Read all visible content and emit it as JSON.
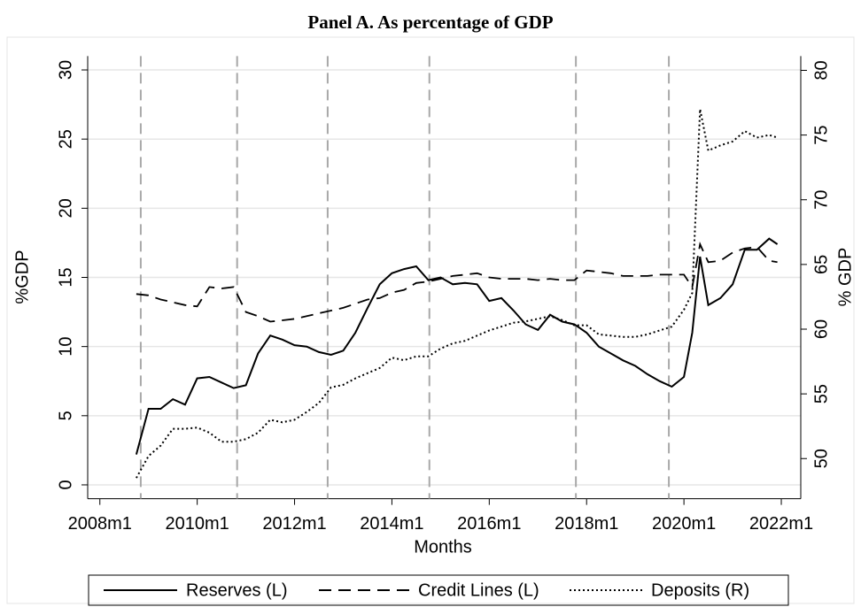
{
  "chart_data": {
    "type": "line",
    "title": "Panel A. As percentage of GDP",
    "x_label": "Months",
    "y_label": "%GDP",
    "y2_label": "% GDP",
    "x": [
      2008.75,
      2009,
      2009.25,
      2009.5,
      2009.75,
      2010,
      2010.25,
      2010.5,
      2010.75,
      2011,
      2011.25,
      2011.5,
      2011.75,
      2012,
      2012.25,
      2012.5,
      2012.75,
      2013,
      2013.25,
      2013.5,
      2013.75,
      2014,
      2014.25,
      2014.5,
      2014.75,
      2015,
      2015.25,
      2015.5,
      2015.75,
      2016,
      2016.25,
      2016.5,
      2016.75,
      2017,
      2017.25,
      2017.5,
      2017.75,
      2018,
      2018.25,
      2018.5,
      2018.75,
      2019,
      2019.25,
      2019.5,
      2019.75,
      2020,
      2020.17,
      2020.33,
      2020.5,
      2020.75,
      2021,
      2021.25,
      2021.5,
      2021.75,
      2021.92
    ],
    "series": [
      {
        "name": "Reserves (L)",
        "color": "#000000",
        "dash": "solid",
        "values": [
          2.2,
          5.5,
          5.5,
          6.2,
          5.8,
          7.7,
          7.8,
          7.4,
          7.0,
          7.2,
          9.5,
          10.8,
          10.5,
          10.1,
          10.0,
          9.6,
          9.4,
          9.7,
          11.0,
          12.8,
          14.5,
          15.3,
          15.6,
          15.8,
          14.8,
          15.0,
          14.5,
          14.6,
          14.5,
          13.3,
          13.5,
          12.6,
          11.6,
          11.2,
          12.3,
          11.8,
          11.6,
          11.0,
          10.0,
          9.5,
          9.0,
          8.6,
          8.0,
          7.5,
          7.1,
          7.8,
          11.0,
          16.5,
          13.0,
          13.5,
          14.5,
          17.0,
          17.0,
          17.8,
          17.4
        ]
      },
      {
        "name": "Credit Lines (L)",
        "color": "#000000",
        "dash": "dashed",
        "values": [
          13.8,
          13.7,
          13.4,
          13.2,
          13.0,
          12.9,
          14.3,
          14.2,
          14.3,
          12.5,
          12.2,
          11.8,
          11.9,
          12.0,
          12.2,
          12.4,
          12.6,
          12.8,
          13.1,
          13.4,
          13.5,
          13.9,
          14.1,
          14.6,
          14.7,
          14.9,
          15.1,
          15.2,
          15.3,
          15.0,
          14.9,
          14.9,
          14.9,
          14.8,
          14.9,
          14.8,
          14.8,
          15.5,
          15.4,
          15.3,
          15.1,
          15.1,
          15.1,
          15.2,
          15.2,
          15.2,
          14.3,
          17.4,
          16.1,
          16.2,
          16.8,
          17.1,
          17.2,
          16.2,
          16.1
        ]
      },
      {
        "name": "Deposits (R)",
        "color": "#000000",
        "dash": "dotted",
        "axis": "y2",
        "values": [
          48.5,
          50.2,
          51.0,
          52.3,
          52.3,
          52.4,
          52.0,
          51.3,
          51.3,
          51.5,
          52.0,
          53.0,
          52.8,
          53.0,
          53.6,
          54.3,
          55.5,
          55.7,
          56.2,
          56.6,
          57.0,
          57.8,
          57.6,
          57.9,
          57.9,
          58.5,
          58.9,
          59.1,
          59.5,
          59.9,
          60.2,
          60.5,
          60.6,
          60.8,
          61.0,
          60.7,
          60.3,
          60.3,
          59.6,
          59.5,
          59.4,
          59.4,
          59.6,
          59.9,
          60.2,
          61.5,
          62.8,
          77.0,
          73.8,
          74.2,
          74.5,
          75.3,
          74.8,
          75.0,
          74.8
        ]
      }
    ],
    "vlines": [
      2008.84,
      2010.82,
      2012.68,
      2014.77,
      2017.78,
      2019.69
    ],
    "xlim": [
      2007.75,
      2022.4
    ],
    "xticks": [
      {
        "value": 2008,
        "label": "2008m1"
      },
      {
        "value": 2010,
        "label": "2010m1"
      },
      {
        "value": 2012,
        "label": "2012m1"
      },
      {
        "value": 2014,
        "label": "2014m1"
      },
      {
        "value": 2016,
        "label": "2016m1"
      },
      {
        "value": 2018,
        "label": "2018m1"
      },
      {
        "value": 2020,
        "label": "2020m1"
      },
      {
        "value": 2022,
        "label": "2022m1"
      }
    ],
    "ylim": [
      -1,
      31
    ],
    "yticks": [
      0,
      5,
      10,
      15,
      20,
      25,
      30
    ],
    "y2lim": [
      46.9,
      81.1
    ],
    "y2ticks": [
      50,
      55,
      60,
      65,
      70,
      75,
      80
    ],
    "grid": true,
    "legend": "bottom"
  }
}
